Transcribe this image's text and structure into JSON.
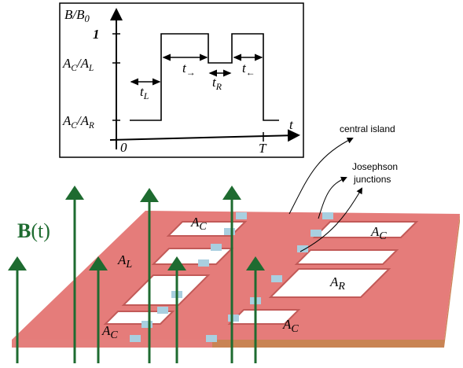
{
  "inset": {
    "y_axis_label": [
      "B/B",
      "0"
    ],
    "x_axis_label": [
      "t"
    ],
    "y_tick_labels": [
      [
        "1"
      ],
      [
        "A",
        "C",
        "/A",
        "L"
      ],
      [
        "A",
        "C",
        "/A",
        "R"
      ]
    ],
    "x_tick_labels": [
      [
        "0"
      ],
      [
        "T"
      ]
    ],
    "interval_labels": [
      [
        "t",
        "L"
      ],
      [
        "t",
        "→"
      ],
      [
        "t",
        "R"
      ],
      [
        "t",
        "←"
      ]
    ]
  },
  "annotations": {
    "central_island": "central island",
    "josephson_junctions": [
      "Josephson",
      "junctions"
    ]
  },
  "field_label": {
    "vector": "B",
    "argument": "(t)"
  },
  "area_labels": [
    [
      "A",
      "C"
    ],
    [
      "A",
      "L"
    ],
    [
      "A",
      "C"
    ],
    [
      "A",
      "R"
    ],
    [
      "A",
      "C"
    ],
    [
      "A",
      "C"
    ]
  ]
}
